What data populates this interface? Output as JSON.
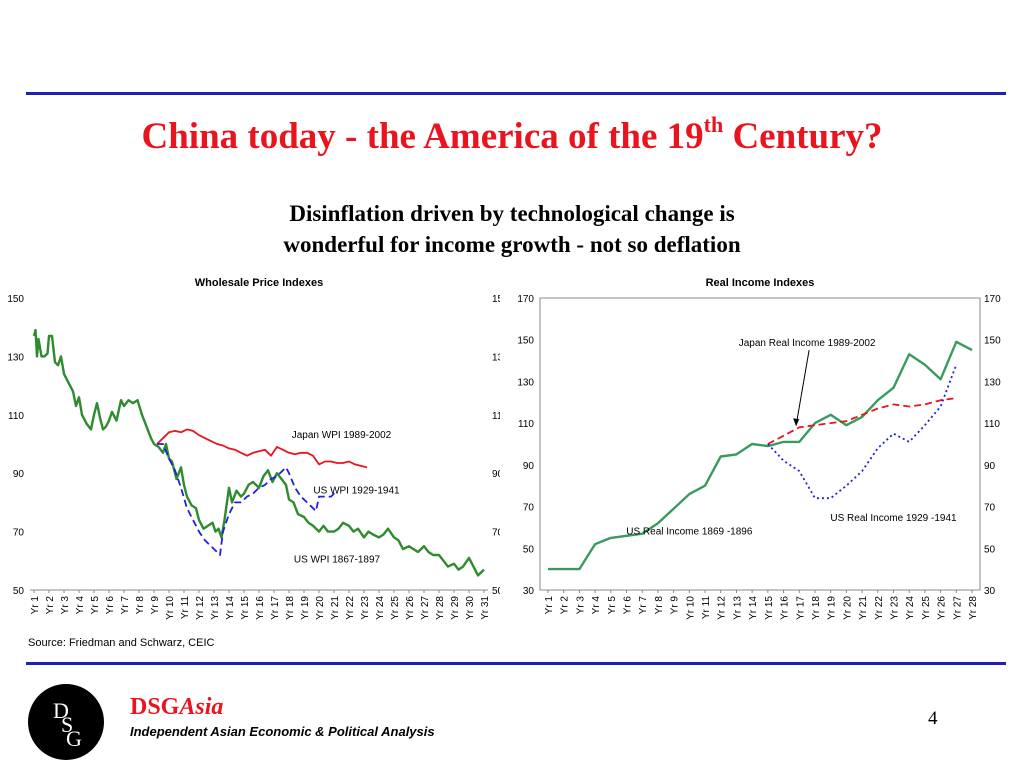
{
  "slide": {
    "title_main": "China today - the America of the 19",
    "title_sup": "th",
    "title_end": " Century?",
    "subtitle_line1": "Disinflation driven by technological change is",
    "subtitle_line2": "wonderful for income growth - not so deflation",
    "source": "Source: Friedman and Schwarz, CEIC",
    "brand_main": "DSG",
    "brand_italic": "Asia",
    "tagline": "Independent Asian Economic & Political Analysis",
    "logo_letters": [
      "D",
      "S",
      "G"
    ],
    "page_number": "4"
  },
  "colors": {
    "rule": "#1f1fb8",
    "title": "#e8141e",
    "green": "#2e8b2e",
    "income_green": "#3a9a5e",
    "red": "#e8141e",
    "blue": "#1f1fe0"
  },
  "chart_data": [
    {
      "type": "line",
      "title": "Wholesale Price Indexes",
      "categories": [
        "Yr 1",
        "Yr 2",
        "Yr 3",
        "Yr 4",
        "Yr 5",
        "Yr 6",
        "Yr 7",
        "Yr 8",
        "Yr 9",
        "Yr 10",
        "Yr 11",
        "Yr 12",
        "Yr 13",
        "Yr 14",
        "Yr 15",
        "Yr 16",
        "Yr 17",
        "Yr 18",
        "Yr 19",
        "Yr 20",
        "Yr 21",
        "Yr 22",
        "Yr 23",
        "Yr 24",
        "Yr 25",
        "Yr 26",
        "Yr 27",
        "Yr 28",
        "Yr 29",
        "Yr 30",
        "Yr 31"
      ],
      "ylim": [
        50,
        150
      ],
      "yticks": [
        50,
        70,
        90,
        110,
        130,
        150
      ],
      "series": [
        {
          "name": "US WPI 1867-1897",
          "color": "#2e8b2e",
          "style": "solid",
          "x": [
            1,
            1.1,
            1.2,
            1.3,
            1.5,
            1.7,
            1.9,
            2.0,
            2.2,
            2.4,
            2.6,
            2.8,
            3.0,
            3.3,
            3.6,
            3.8,
            4.0,
            4.2,
            4.5,
            4.8,
            5.0,
            5.2,
            5.4,
            5.6,
            5.8,
            6.0,
            6.2,
            6.5,
            6.8,
            7.0,
            7.3,
            7.6,
            7.9,
            8.2,
            8.5,
            8.8,
            9.0,
            9.3,
            9.6,
            9.8,
            10.0,
            10.2,
            10.5,
            10.8,
            11.0,
            11.2,
            11.5,
            11.8,
            12.0,
            12.3,
            12.6,
            12.9,
            13.1,
            13.3,
            13.5,
            13.7,
            14.0,
            14.2,
            14.5,
            14.8,
            15.0,
            15.3,
            15.6,
            16.0,
            16.3,
            16.6,
            16.9,
            17.2,
            17.5,
            17.8,
            18.0,
            18.3,
            18.6,
            19.0,
            19.3,
            19.6,
            20.0,
            20.3,
            20.6,
            21.0,
            21.3,
            21.6,
            22.0,
            22.3,
            22.6,
            23.0,
            23.3,
            23.6,
            24.0,
            24.3,
            24.6,
            25.0,
            25.3,
            25.6,
            26.0,
            26.3,
            26.6,
            27.0,
            27.3,
            27.6,
            28.0,
            28.3,
            28.6,
            29.0,
            29.3,
            29.6,
            30.0,
            30.3,
            30.6,
            31.0
          ],
          "y": [
            137,
            139,
            130,
            136,
            130,
            130,
            131,
            137,
            137,
            128,
            127,
            130,
            124,
            121,
            118,
            113,
            116,
            110,
            107,
            105,
            110,
            114,
            109,
            105,
            106,
            108,
            111,
            108,
            115,
            113,
            115,
            114,
            115,
            110,
            106,
            102,
            100,
            99,
            97,
            100,
            95,
            94,
            88,
            92,
            86,
            82,
            79,
            78,
            74,
            71,
            72,
            73,
            70,
            71,
            68,
            74,
            85,
            80,
            84,
            82,
            83,
            86,
            87,
            85,
            89,
            91,
            87,
            90,
            88,
            86,
            81,
            80,
            76,
            75,
            73,
            72,
            70,
            72,
            70,
            70,
            71,
            73,
            72,
            70,
            71,
            68,
            70,
            69,
            68,
            69,
            71,
            68,
            67,
            64,
            65,
            64,
            63,
            65,
            63,
            62,
            62,
            60,
            58,
            59,
            57,
            58,
            61,
            58,
            55,
            57
          ]
        },
        {
          "name": "Japan WPI 1989-2002",
          "color": "#e8141e",
          "style": "solid",
          "x": [
            9.2,
            9.6,
            10.0,
            10.4,
            10.8,
            11.2,
            11.6,
            12.0,
            12.4,
            12.8,
            13.2,
            13.6,
            14.0,
            14.4,
            14.8,
            15.2,
            15.6,
            16.0,
            16.4,
            16.8,
            17.2,
            17.6,
            18.0,
            18.4,
            18.8,
            19.2,
            19.6,
            20.0,
            20.4,
            20.8,
            21.2,
            21.6,
            22.0,
            22.4,
            22.8,
            23.2
          ],
          "y": [
            100,
            102,
            104,
            104.5,
            104,
            105,
            104.5,
            103,
            102,
            101,
            100,
            99.5,
            98.5,
            98,
            97,
            96,
            97,
            97.5,
            98,
            96,
            99,
            98,
            97,
            96.5,
            97,
            97,
            96,
            93,
            94,
            94,
            93.5,
            93.5,
            94,
            93,
            92.5,
            92
          ]
        },
        {
          "name": "US WPI 1929-1941",
          "color": "#1f1fe0",
          "style": "dashed",
          "x": [
            9.2,
            9.6,
            10.0,
            10.4,
            10.8,
            11.2,
            11.6,
            12.0,
            12.4,
            12.8,
            13.2,
            13.4,
            13.6,
            14.0,
            14.4,
            14.8,
            15.2,
            15.6,
            16.0,
            16.4,
            16.8,
            17.2,
            17.6,
            17.8,
            18.0,
            18.4,
            18.8,
            19.2,
            19.6,
            19.8,
            20.0,
            20.4,
            20.8,
            21.2
          ],
          "y": [
            100,
            100,
            95,
            91,
            85,
            78,
            74,
            70,
            67,
            65,
            63,
            62,
            70,
            76,
            80,
            80,
            82,
            83,
            85,
            86,
            88,
            89,
            91,
            92,
            90,
            85,
            82,
            80,
            78,
            77,
            82,
            82,
            82,
            84
          ]
        }
      ],
      "annotations": [
        {
          "text": "Japan WPI 1989-2002",
          "x": 21.5,
          "y": 102
        },
        {
          "text": "US WPI 1929-1941",
          "x": 22.5,
          "y": 83
        },
        {
          "text": "US WPI 1867-1897",
          "x": 21.2,
          "y": 59.5
        }
      ]
    },
    {
      "type": "line",
      "title": "Real Income Indexes",
      "categories": [
        "Yr 1",
        "Yr 2",
        "Yr 3",
        "Yr 4",
        "Yr 5",
        "Yr 6",
        "Yr 7",
        "Yr 8",
        "Yr 9",
        "Yr 10",
        "Yr 11",
        "Yr 12",
        "Yr 13",
        "Yr 14",
        "Yr 15",
        "Yr 16",
        "Yr 17",
        "Yr 18",
        "Yr 19",
        "Yr 20",
        "Yr 21",
        "Yr 22",
        "Yr 23",
        "Yr 24",
        "Yr 25",
        "Yr 26",
        "Yr 27",
        "Yr 28"
      ],
      "ylim": [
        30,
        170
      ],
      "yticks": [
        30,
        50,
        70,
        90,
        110,
        130,
        150,
        170
      ],
      "series": [
        {
          "name": "US Real Income 1869 -1896",
          "color": "#3a9a5e",
          "style": "solid",
          "x": [
            1,
            2,
            3,
            4,
            5,
            6,
            7,
            8,
            9,
            10,
            11,
            12,
            13,
            14,
            15,
            16,
            17,
            18,
            19,
            20,
            21,
            22,
            23,
            24,
            25,
            26,
            27,
            28
          ],
          "y": [
            40,
            40,
            40,
            52,
            55,
            56,
            57,
            62,
            69,
            76,
            80,
            94,
            95,
            100,
            99,
            101,
            101,
            110,
            114,
            109,
            113,
            121,
            127,
            143,
            138,
            131,
            149,
            145
          ]
        },
        {
          "name": "Japan Real Income 1989-2002",
          "color": "#e8141e",
          "style": "dashed",
          "x": [
            15,
            16,
            17,
            18,
            19,
            20,
            21,
            22,
            23,
            24,
            25,
            26,
            27
          ],
          "y": [
            100,
            104,
            108,
            109,
            110,
            111,
            114,
            117,
            119,
            118,
            119,
            121,
            122
          ]
        },
        {
          "name": "US Real Income 1929 -1941",
          "color": "#1f1fe0",
          "style": "dotted",
          "x": [
            15,
            16,
            17,
            18,
            19,
            20,
            21,
            22,
            23,
            24,
            25,
            26,
            27
          ],
          "y": [
            100,
            92,
            87,
            74,
            74,
            80,
            87,
            98,
            105,
            101,
            109,
            118,
            138
          ]
        }
      ],
      "annotations": [
        {
          "text": "Japan Real Income 1989-2002",
          "x": 17.5,
          "y": 147
        },
        {
          "text": "US Real Income 1929 -1941",
          "x": 23.0,
          "y": 63
        },
        {
          "text": "US Real Income 1869 -1896",
          "x": 10.0,
          "y": 56.5
        }
      ]
    }
  ]
}
